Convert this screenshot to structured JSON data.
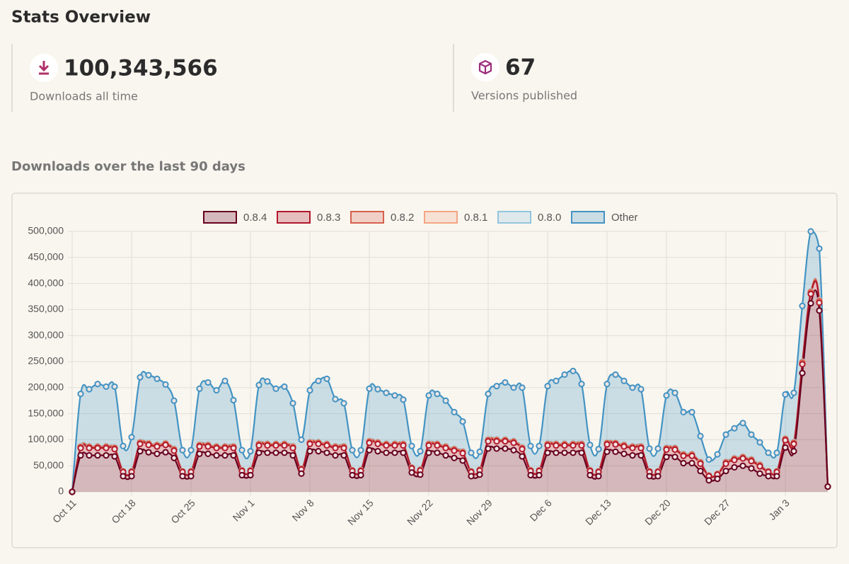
{
  "header": {
    "title": "Stats Overview"
  },
  "stats": [
    {
      "value": "100,343,566",
      "label": "Downloads all time"
    },
    {
      "value": 67,
      "label": "Versions published"
    }
  ],
  "section_title": "Downloads over the last 90 days",
  "chart_data": {
    "type": "area",
    "stacked": true,
    "grid": true,
    "legend": "top",
    "categories": [
      "Oct 11",
      null,
      null,
      null,
      null,
      null,
      null,
      "Oct 18",
      null,
      null,
      null,
      null,
      null,
      null,
      "Oct 25",
      null,
      null,
      null,
      null,
      null,
      null,
      "Nov 1",
      null,
      null,
      null,
      null,
      null,
      null,
      "Nov 8",
      null,
      null,
      null,
      null,
      null,
      null,
      "Nov 15",
      null,
      null,
      null,
      null,
      null,
      null,
      "Nov 22",
      null,
      null,
      null,
      null,
      null,
      null,
      "Nov 29",
      null,
      null,
      null,
      null,
      null,
      null,
      "Dec 6",
      null,
      null,
      null,
      null,
      null,
      null,
      "Dec 13",
      null,
      null,
      null,
      null,
      null,
      null,
      "Dec 20",
      null,
      null,
      null,
      null,
      null,
      null,
      "Dec 27",
      null,
      null,
      null,
      null,
      null,
      null,
      "Jan 3",
      null,
      null,
      null,
      null,
      null
    ],
    "ylim": [
      0,
      500000
    ],
    "yticks": [
      0,
      {
        "value": 50000,
        "label": "50,000"
      },
      {
        "value": 100000,
        "label": "100,000"
      },
      {
        "value": 150000,
        "label": "150,000"
      },
      {
        "value": 200000,
        "label": "200,000"
      },
      {
        "value": 250000,
        "label": "250,000"
      },
      {
        "value": 300000,
        "label": "300,000"
      },
      {
        "value": 350000,
        "label": "350,000"
      },
      {
        "value": 400000,
        "label": "400,000"
      },
      {
        "value": 450000,
        "label": "450,000"
      },
      {
        "value": 500000,
        "label": "500,000"
      }
    ],
    "series": [
      {
        "name": "0.8.4",
        "color": "#67001f",
        "values": [
          0,
          70000,
          70000,
          70000,
          70000,
          68000,
          30000,
          30000,
          78000,
          76000,
          73000,
          76000,
          65000,
          30000,
          30000,
          73000,
          73000,
          70000,
          70000,
          70000,
          32000,
          32000,
          75000,
          75000,
          75000,
          75000,
          70000,
          35000,
          78000,
          78000,
          75000,
          70000,
          70000,
          32000,
          32000,
          80000,
          78000,
          75000,
          75000,
          75000,
          37000,
          33000,
          75000,
          75000,
          70000,
          65000,
          60000,
          30000,
          33000,
          83000,
          83000,
          83000,
          80000,
          68000,
          32000,
          32000,
          75000,
          75000,
          75000,
          75000,
          75000,
          32000,
          30000,
          77000,
          77000,
          73000,
          70000,
          70000,
          30000,
          30000,
          67000,
          67000,
          55000,
          55000,
          40000,
          22000,
          25000,
          40000,
          47000,
          50000,
          45000,
          35000,
          30000,
          30000,
          85000,
          78000,
          228000,
          362000,
          348000,
          10000
        ]
      },
      {
        "name": "0.8.3",
        "color": "#b2182b",
        "values": [
          0,
          14000,
          14000,
          14000,
          14000,
          14000,
          8000,
          8000,
          14000,
          14000,
          14000,
          14000,
          14000,
          8000,
          8000,
          14000,
          14000,
          14000,
          14000,
          14000,
          8000,
          8000,
          14000,
          14000,
          14000,
          14000,
          14000,
          8000,
          14000,
          14000,
          14000,
          14000,
          14000,
          8000,
          8000,
          14000,
          14000,
          14000,
          14000,
          14000,
          8000,
          8000,
          14000,
          14000,
          14000,
          14000,
          14000,
          8000,
          8000,
          14000,
          14000,
          14000,
          14000,
          14000,
          8000,
          8000,
          14000,
          14000,
          14000,
          14000,
          14000,
          8000,
          8000,
          14000,
          14000,
          14000,
          14000,
          14000,
          8000,
          8000,
          14000,
          14000,
          14000,
          14000,
          14000,
          8000,
          8000,
          14000,
          14000,
          14000,
          14000,
          14000,
          8000,
          8000,
          14000,
          14000,
          17000,
          18000,
          15000,
          0
        ]
      },
      {
        "name": "0.8.2",
        "color": "#d6604d",
        "values": [
          0,
          2000,
          2000,
          2000,
          2000,
          2000,
          1000,
          1000,
          2000,
          2000,
          2000,
          2000,
          2000,
          1000,
          1000,
          2000,
          2000,
          2000,
          2000,
          2000,
          1000,
          1000,
          2000,
          2000,
          2000,
          2000,
          2000,
          1000,
          2000,
          2000,
          2000,
          2000,
          2000,
          1000,
          1000,
          2000,
          2000,
          2000,
          2000,
          2000,
          1000,
          1000,
          2000,
          2000,
          2000,
          2000,
          2000,
          1000,
          1000,
          2000,
          2000,
          2000,
          2000,
          2000,
          1000,
          1000,
          2000,
          2000,
          2000,
          2000,
          2000,
          1000,
          1000,
          2000,
          2000,
          2000,
          2000,
          2000,
          1000,
          1000,
          2000,
          2000,
          2000,
          2000,
          2000,
          1000,
          1000,
          2000,
          2000,
          2000,
          2000,
          2000,
          1000,
          1000,
          2000,
          2000,
          3000,
          3000,
          3000,
          0
        ]
      },
      {
        "name": "0.8.1",
        "color": "#f4a582",
        "values": [
          0,
          1000,
          1000,
          1000,
          1000,
          1000,
          500,
          500,
          1000,
          1000,
          1000,
          1000,
          1000,
          500,
          500,
          1000,
          1000,
          1000,
          1000,
          1000,
          500,
          500,
          1000,
          1000,
          1000,
          1000,
          1000,
          500,
          1000,
          1000,
          1000,
          1000,
          1000,
          500,
          500,
          1000,
          1000,
          1000,
          1000,
          1000,
          500,
          500,
          1000,
          1000,
          1000,
          1000,
          1000,
          500,
          500,
          1000,
          1000,
          1000,
          1000,
          1000,
          500,
          500,
          1000,
          1000,
          1000,
          1000,
          1000,
          500,
          500,
          1000,
          1000,
          1000,
          1000,
          1000,
          500,
          500,
          1000,
          1000,
          1000,
          1000,
          1000,
          500,
          500,
          1000,
          1000,
          1000,
          1000,
          1000,
          500,
          500,
          1000,
          1000,
          1000,
          1000,
          1000,
          0
        ]
      },
      {
        "name": "0.8.0",
        "color": "#92c5de",
        "values": [
          0,
          1000,
          1000,
          1000,
          1000,
          1000,
          500,
          500,
          1000,
          1000,
          1000,
          1000,
          1000,
          500,
          500,
          1000,
          1000,
          1000,
          1000,
          1000,
          500,
          500,
          1000,
          1000,
          1000,
          1000,
          1000,
          500,
          1000,
          1000,
          1000,
          1000,
          1000,
          500,
          500,
          1000,
          1000,
          1000,
          1000,
          1000,
          500,
          500,
          1000,
          1000,
          1000,
          1000,
          1000,
          500,
          500,
          1000,
          1000,
          1000,
          1000,
          1000,
          500,
          500,
          1000,
          1000,
          1000,
          1000,
          1000,
          500,
          500,
          1000,
          1000,
          1000,
          1000,
          1000,
          500,
          500,
          1000,
          1000,
          1000,
          1000,
          1000,
          500,
          500,
          1000,
          1000,
          1000,
          1000,
          1000,
          500,
          500,
          1000,
          1000,
          1000,
          1000,
          1000,
          0
        ]
      },
      {
        "name": "Other",
        "color": "#4393c3",
        "values": [
          0,
          100000,
          109000,
          119000,
          114000,
          116000,
          48000,
          65000,
          124000,
          130000,
          126000,
          112000,
          92000,
          40000,
          40000,
          107000,
          119000,
          107000,
          125000,
          88000,
          38000,
          36000,
          112000,
          119000,
          105000,
          109000,
          82000,
          55000,
          99000,
          117000,
          124000,
          90000,
          82000,
          38000,
          38000,
          100000,
          101000,
          97000,
          92000,
          84000,
          41000,
          35000,
          92000,
          95000,
          87000,
          70000,
          57000,
          35000,
          34000,
          87000,
          102000,
          109000,
          102000,
          114000,
          46000,
          46000,
          110000,
          120000,
          132000,
          139000,
          114000,
          48000,
          42000,
          112000,
          130000,
          122000,
          112000,
          109000,
          43000,
          43000,
          100000,
          105000,
          80000,
          80000,
          49000,
          30000,
          37000,
          52000,
          57000,
          64000,
          47000,
          42000,
          35000,
          35000,
          84000,
          94000,
          107000,
          115000,
          99000,
          0
        ]
      }
    ]
  }
}
